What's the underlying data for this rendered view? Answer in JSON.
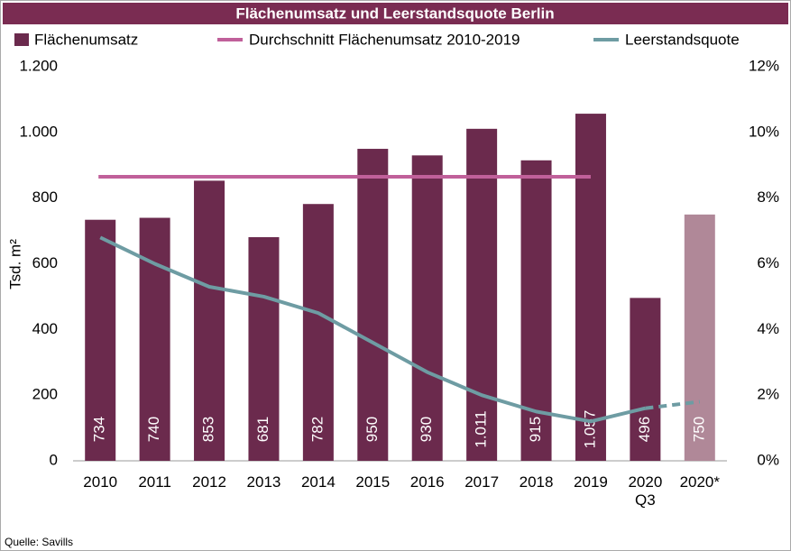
{
  "chart_data": {
    "type": "bar",
    "title": "Flächenumsatz und Leerstandsquote Berlin",
    "ylabel": "Tsd. m²",
    "source": "Quelle: Savills",
    "categories": [
      "2010",
      "2011",
      "2012",
      "2013",
      "2014",
      "2015",
      "2016",
      "2017",
      "2018",
      "2019",
      "2020\nQ3",
      "2020*"
    ],
    "series": [
      {
        "name": "Flächenumsatz",
        "type": "bar",
        "color": "#6b2a4d",
        "colors": [
          "#6b2a4d",
          "#6b2a4d",
          "#6b2a4d",
          "#6b2a4d",
          "#6b2a4d",
          "#6b2a4d",
          "#6b2a4d",
          "#6b2a4d",
          "#6b2a4d",
          "#6b2a4d",
          "#6b2a4d",
          "#b08898"
        ],
        "values": [
          734,
          740,
          853,
          681,
          782,
          950,
          930,
          1011,
          915,
          1057,
          496,
          750
        ],
        "value_labels": [
          "734",
          "740",
          "853",
          "681",
          "782",
          "950",
          "930",
          "1.011",
          "915",
          "1.057",
          "496",
          "750"
        ]
      },
      {
        "name": "Durchschnitt Flächenumsatz 2010-2019",
        "type": "hline",
        "color": "#c0609a",
        "values": [
          865,
          865,
          865,
          865,
          865,
          865,
          865,
          865,
          865,
          865,
          null,
          null
        ]
      },
      {
        "name": "Leerstandsquote",
        "type": "line",
        "axis": "y2",
        "color": "#6e9ca3",
        "dashed_last_segment": true,
        "values": [
          6.8,
          6.0,
          5.3,
          5.0,
          4.5,
          3.6,
          2.7,
          2.0,
          1.5,
          1.2,
          1.6,
          1.8
        ]
      }
    ],
    "ylim": [
      0,
      1200
    ],
    "yticks": [
      0,
      200,
      400,
      600,
      800,
      {
        "value": 1000,
        "label": "1.000"
      },
      {
        "value": 1200,
        "label": "1.200"
      }
    ],
    "y2lim": [
      0,
      12
    ],
    "y2ticks": [
      {
        "value": 0,
        "label": "0%"
      },
      {
        "value": 2,
        "label": "2%"
      },
      {
        "value": 4,
        "label": "4%"
      },
      {
        "value": 6,
        "label": "6%"
      },
      {
        "value": 8,
        "label": "8%"
      },
      {
        "value": 10,
        "label": "10%"
      },
      {
        "value": 12,
        "label": "12%"
      }
    ]
  }
}
